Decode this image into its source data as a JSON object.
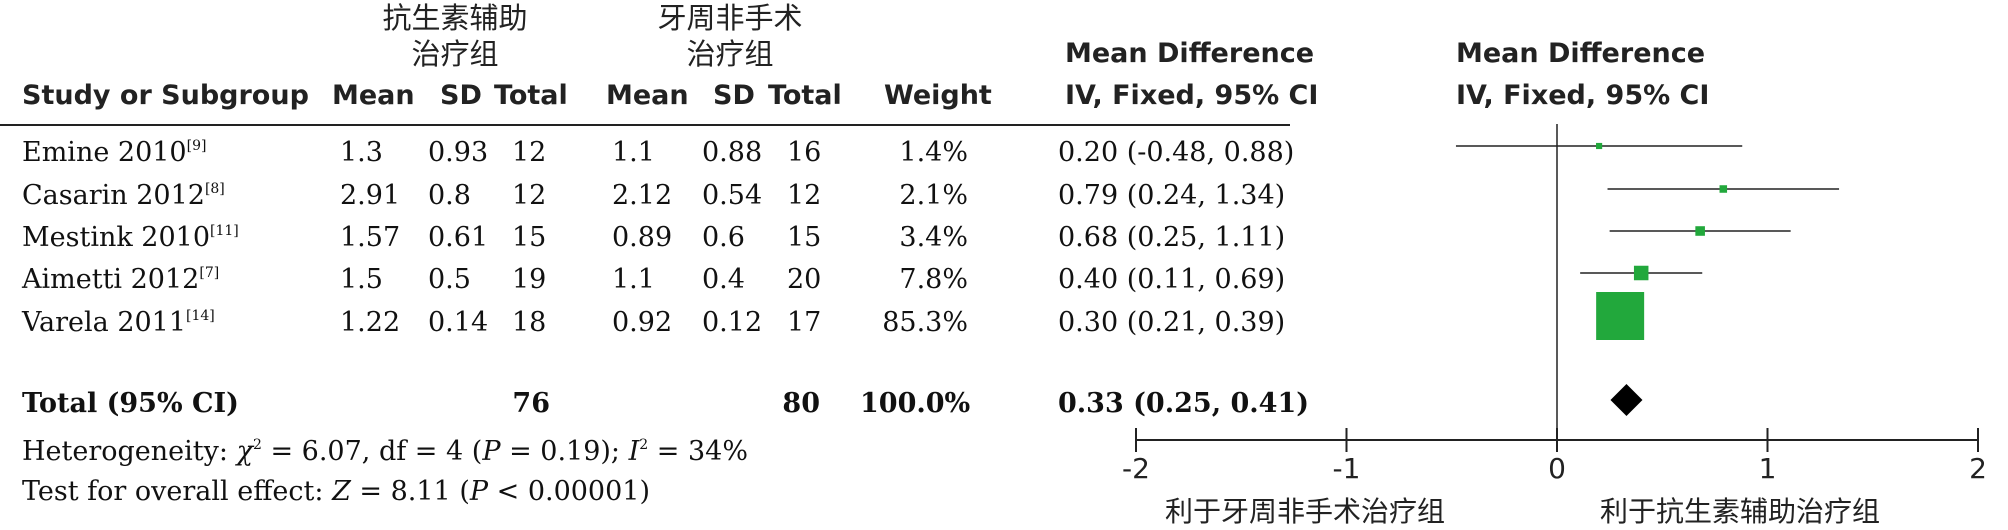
{
  "headers": {
    "group1": "抗生素辅助\n治疗组",
    "group2": "牙周非手术\n治疗组",
    "study": "Study or Subgroup",
    "mean": "Mean",
    "sd": "SD",
    "total": "Total",
    "weight": "Weight",
    "md_title": "Mean Difference",
    "md_method": "IV, Fixed, 95% CI"
  },
  "rows": [
    {
      "study": "Emine 2010",
      "ref": "[9]",
      "m1": "1.3",
      "sd1": "0.93",
      "n1": "12",
      "m2": "1.1",
      "sd2": "0.88",
      "n2": "16",
      "weight": "1.4%",
      "ci": "0.20 (-0.48, 0.88)"
    },
    {
      "study": "Casarin 2012",
      "ref": "[8]",
      "m1": "2.91",
      "sd1": "0.8",
      "n1": "12",
      "m2": "2.12",
      "sd2": "0.54",
      "n2": "12",
      "weight": "2.1%",
      "ci": "0.79 (0.24, 1.34)"
    },
    {
      "study": "Mestink 2010",
      "ref": "[11]",
      "m1": "1.57",
      "sd1": "0.61",
      "n1": "15",
      "m2": "0.89",
      "sd2": "0.6",
      "n2": "15",
      "weight": "3.4%",
      "ci": "0.68 (0.25, 1.11)"
    },
    {
      "study": "Aimetti 2012",
      "ref": "[7]",
      "m1": "1.5",
      "sd1": "0.5",
      "n1": "19",
      "m2": "1.1",
      "sd2": "0.4",
      "n2": "20",
      "weight": "7.8%",
      "ci": "0.40 (0.11, 0.69)"
    },
    {
      "study": "Varela 2011",
      "ref": "[14]",
      "m1": "1.22",
      "sd1": "0.14",
      "n1": "18",
      "m2": "0.92",
      "sd2": "0.12",
      "n2": "17",
      "weight": "85.3%",
      "ci": "0.30 (0.21, 0.39)"
    }
  ],
  "total": {
    "label": "Total (95% CI)",
    "n1": "76",
    "n2": "80",
    "weight": "100.0%",
    "ci": "0.33 (0.25, 0.41)"
  },
  "heterogeneity": {
    "prefix": "Heterogeneity: ",
    "chi": "χ",
    "chi_text": " = 6.07, df = 4 (",
    "p": "P",
    "p_text": " = 0.19); ",
    "i": "I",
    "i_text": " = 34%"
  },
  "overall": {
    "prefix": "Test for overall effect: ",
    "z": "Z",
    "z_text": " = 8.11 (",
    "p": "P",
    "p_text": " < 0.00001)"
  },
  "favours": {
    "left": "利于牙周非手术治疗组",
    "right": "利于抗生素辅助治疗组"
  },
  "colors": {
    "box": "#22a83c",
    "diamond": "#000000",
    "line": "#222222"
  },
  "chart_data": {
    "type": "forest",
    "xlim": [
      -2,
      2
    ],
    "ticks": [
      "-2",
      "-1",
      "0",
      "1",
      "2"
    ],
    "tick_values": [
      -2,
      -1,
      0,
      1,
      2
    ],
    "studies": [
      {
        "name": "Emine 2010",
        "md": 0.2,
        "lo": -0.48,
        "hi": 0.88,
        "weight": 1.4
      },
      {
        "name": "Casarin 2012",
        "md": 0.79,
        "lo": 0.24,
        "hi": 1.34,
        "weight": 2.1
      },
      {
        "name": "Mestink 2010",
        "md": 0.68,
        "lo": 0.25,
        "hi": 1.11,
        "weight": 3.4
      },
      {
        "name": "Aimetti 2012",
        "md": 0.4,
        "lo": 0.11,
        "hi": 0.69,
        "weight": 7.8
      },
      {
        "name": "Varela 2011",
        "md": 0.3,
        "lo": 0.21,
        "hi": 0.39,
        "weight": 85.3
      }
    ],
    "pooled": {
      "md": 0.33,
      "lo": 0.25,
      "hi": 0.41
    }
  }
}
